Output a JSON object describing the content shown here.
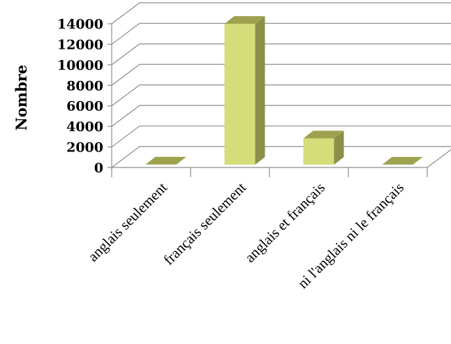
{
  "chart_data": {
    "type": "bar",
    "title": "",
    "xlabel": "",
    "ylabel": "Nombre",
    "categories": [
      "anglais seulement",
      "français seulement",
      "anglais et français",
      "ni l'anglais ni le français"
    ],
    "values": [
      15,
      13720,
      2560,
      10
    ],
    "ylim": [
      0,
      14000
    ],
    "yticks": [
      "0",
      "2000",
      "4000",
      "6000",
      "8000",
      "10000",
      "12000",
      "14000"
    ],
    "grid": true,
    "legend": "none",
    "style": "3d-column",
    "colors": {
      "bar_front": "#d4dd7a",
      "bar_side": "#8c8f4a",
      "bar_top": "#9ea24f",
      "grid": "#8c8c8c"
    }
  }
}
